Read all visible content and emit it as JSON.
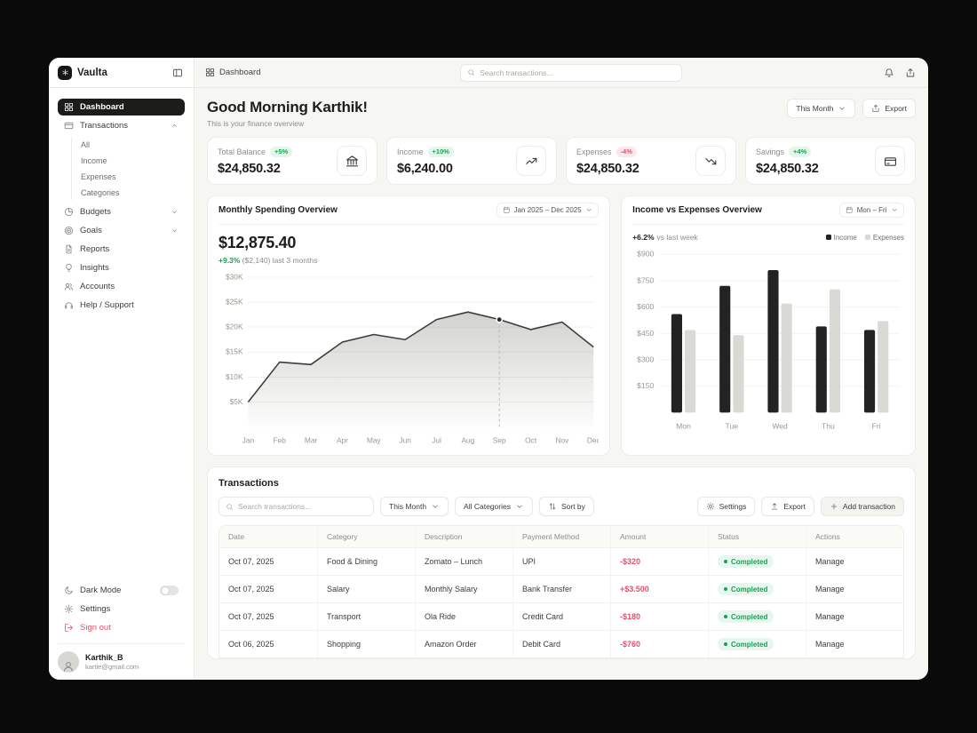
{
  "brand": {
    "name": "Vaulta"
  },
  "topbar": {
    "breadcrumb": "Dashboard",
    "search_placeholder": "Search transactions..."
  },
  "sidebar": {
    "items": [
      {
        "label": "Dashboard",
        "icon": "grid"
      },
      {
        "label": "Transactions",
        "icon": "card"
      },
      {
        "label": "Budgets",
        "icon": "pie"
      },
      {
        "label": "Goals",
        "icon": "target"
      },
      {
        "label": "Reports",
        "icon": "doc"
      },
      {
        "label": "Insights",
        "icon": "bulb"
      },
      {
        "label": "Accounts",
        "icon": "users"
      },
      {
        "label": "Help / Support",
        "icon": "headset"
      }
    ],
    "transactions_sub": [
      "All",
      "Income",
      "Expenses",
      "Categories"
    ],
    "footer": [
      {
        "label": "Dark Mode",
        "icon": "moon"
      },
      {
        "label": "Settings",
        "icon": "gear"
      },
      {
        "label": "Sign out",
        "icon": "signout"
      }
    ],
    "profile": {
      "name": "Karthik_B",
      "email": "kartie@gmail.com"
    }
  },
  "page": {
    "greeting": "Good Morning Karthik!",
    "subtitle": "This is your finance overview",
    "period_button": "This Month",
    "export_button": "Export"
  },
  "stats": [
    {
      "label": "Total Balance",
      "badge": "+5%",
      "value": "$24,850.32",
      "icon": "bank"
    },
    {
      "label": "Income",
      "badge": "+10%",
      "value": "$6,240.00",
      "icon": "trend-up"
    },
    {
      "label": "Expenses",
      "badge": "-4%",
      "value": "$24,850.32",
      "icon": "trend-down"
    },
    {
      "label": "Savings",
      "badge": "+4%",
      "value": "$24,850.32",
      "icon": "wallet"
    }
  ],
  "transactions": {
    "title": "Transactions",
    "search_placeholder": "Search transactions...",
    "filters": {
      "period": "This Month",
      "category": "All Categories",
      "sort": "Sort by"
    },
    "buttons": {
      "settings": "Settings",
      "export": "Export",
      "add": "Add transaction"
    },
    "columns": [
      "Date",
      "Category",
      "Description",
      "Payment Method",
      "Amount",
      "Status",
      "Actions"
    ],
    "rows": [
      {
        "date": "Oct 07, 2025",
        "category": "Food & Dining",
        "description": "Zomato – Lunch",
        "payment": "UPI",
        "amount": "-$320",
        "status": "Completed",
        "action": "Manage"
      },
      {
        "date": "Oct 07, 2025",
        "category": "Salary",
        "description": "Monthly Salary",
        "payment": "Bank Transfer",
        "amount": "+$3.500",
        "status": "Completed",
        "action": "Manage"
      },
      {
        "date": "Oct 07, 2025",
        "category": "Transport",
        "description": "Ola Ride",
        "payment": "Credit Card",
        "amount": "-$180",
        "status": "Completed",
        "action": "Manage"
      },
      {
        "date": "Oct 06, 2025",
        "category": "Shopping",
        "description": "Amazon Order",
        "payment": "Debit Card",
        "amount": "-$760",
        "status": "Completed",
        "action": "Manage"
      }
    ]
  },
  "colors": {
    "positive_green": "#19a04f",
    "negative_red": "#e5506e",
    "active_item": "#1c1c1b",
    "income_bar": "#232323",
    "expenses_bar": "#d9d9d6"
  },
  "chart_data": [
    {
      "type": "area",
      "title": "Monthly Spending Overview",
      "period": "Jan 2025 – Dec 2025",
      "total": "$12,875.40",
      "delta": "+9.3%",
      "delta_note": "($2,140)",
      "delta_suffix": "last 3 months",
      "x": [
        "Jan",
        "Feb",
        "Mar",
        "Apr",
        "May",
        "Jun",
        "Jul",
        "Aug",
        "Sep",
        "Oct",
        "Nov",
        "Dec"
      ],
      "values": [
        5000,
        13000,
        12500,
        17000,
        18500,
        17500,
        21500,
        23000,
        21500,
        19500,
        21000,
        16000
      ],
      "marker_index": 8,
      "y_max": 30000,
      "y_grid": [
        5000,
        10000,
        15000,
        20000,
        25000,
        30000
      ],
      "y_labels": [
        "$5K",
        "$10K",
        "$15K",
        "$20K",
        "$25K",
        "$30K"
      ],
      "grid": true,
      "legend": "none"
    },
    {
      "type": "bar",
      "title": "Income vs Expenses Overview",
      "period": "Mon – Fri",
      "delta": "+6.2%",
      "delta_suffix": "vs last week",
      "categories": [
        "Mon",
        "Tue",
        "Wed",
        "Thu",
        "Fri"
      ],
      "series": [
        {
          "name": "Income",
          "color": "#232323",
          "values": [
            560,
            720,
            810,
            490,
            470
          ]
        },
        {
          "name": "Expenses",
          "color": "#d9d9d6",
          "values": [
            470,
            440,
            620,
            700,
            520
          ]
        }
      ],
      "y_max": 900,
      "y_grid": [
        150,
        300,
        450,
        600,
        750,
        900
      ],
      "y_labels": [
        "$150",
        "$300",
        "$450",
        "$600",
        "$750",
        "$900"
      ],
      "grid": true,
      "legend": "top-right"
    }
  ]
}
